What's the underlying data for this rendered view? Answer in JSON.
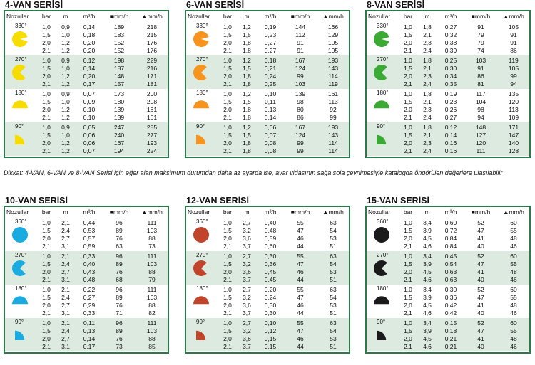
{
  "note": "Dikkat: 4-VAN, 6-VAN ve 8-VAN Serisi için eğer alan maksimum durumdan daha az ayarda ise, ayar vidasının sağa sola çevrilmesiyle katalogda öngörülen değerlere ulaşılabilir",
  "headers": {
    "nozzle": "Nozullar",
    "bar": "bar",
    "m": "m",
    "m3h": "m³/h",
    "sq": "■mm/h",
    "tri": "▲mm/h"
  },
  "panels": [
    {
      "title": "4-VAN SERİSİ",
      "color": "#f7dc00",
      "groups": [
        {
          "angle": "330°",
          "rows": [
            [
              "1,0",
              "0,9",
              "0,14",
              "189",
              "218"
            ],
            [
              "1,5",
              "1,0",
              "0,18",
              "183",
              "215"
            ],
            [
              "2,0",
              "1,2",
              "0,20",
              "152",
              "176"
            ],
            [
              "2,1",
              "1,2",
              "0,20",
              "152",
              "176"
            ]
          ]
        },
        {
          "angle": "270°",
          "rows": [
            [
              "1,0",
              "0,9",
              "0,12",
              "198",
              "229"
            ],
            [
              "1,5",
              "1,0",
              "0,14",
              "187",
              "216"
            ],
            [
              "2,0",
              "1,2",
              "0,20",
              "148",
              "171"
            ],
            [
              "2,1",
              "1,2",
              "0,17",
              "157",
              "181"
            ]
          ]
        },
        {
          "angle": "180°",
          "rows": [
            [
              "1,0",
              "0,9",
              "0,07",
              "173",
              "200"
            ],
            [
              "1,5",
              "1,0",
              "0,09",
              "180",
              "208"
            ],
            [
              "2,0",
              "1,2",
              "0,10",
              "139",
              "161"
            ],
            [
              "2,1",
              "1,2",
              "0,10",
              "139",
              "161"
            ]
          ]
        },
        {
          "angle": "90°",
          "rows": [
            [
              "1,0",
              "0,9",
              "0,05",
              "247",
              "285"
            ],
            [
              "1,5",
              "1,0",
              "0,06",
              "240",
              "277"
            ],
            [
              "2,0",
              "1,2",
              "0,06",
              "167",
              "193"
            ],
            [
              "2,1",
              "1,2",
              "0,07",
              "194",
              "224"
            ]
          ]
        }
      ]
    },
    {
      "title": "6-VAN SERİSİ",
      "color": "#f7941d",
      "groups": [
        {
          "angle": "330°",
          "rows": [
            [
              "1,0",
              "1,2",
              "0,19",
              "144",
              "166"
            ],
            [
              "1,5",
              "1,5",
              "0,23",
              "112",
              "129"
            ],
            [
              "2,0",
              "1,8",
              "0,27",
              "91",
              "105"
            ],
            [
              "2,1",
              "1,8",
              "0,27",
              "91",
              "105"
            ]
          ]
        },
        {
          "angle": "270°",
          "rows": [
            [
              "1,0",
              "1,2",
              "0,18",
              "167",
              "193"
            ],
            [
              "1,5",
              "1,5",
              "0,21",
              "124",
              "143"
            ],
            [
              "2,0",
              "1,8",
              "0,24",
              "99",
              "114"
            ],
            [
              "2,1",
              "1,8",
              "0,25",
              "103",
              "119"
            ]
          ]
        },
        {
          "angle": "180°",
          "rows": [
            [
              "1,0",
              "1,2",
              "0,10",
              "139",
              "161"
            ],
            [
              "1,5",
              "1,5",
              "0,11",
              "98",
              "113"
            ],
            [
              "2,0",
              "1,8",
              "0,13",
              "80",
              "92"
            ],
            [
              "2,1",
              "1,8",
              "0,14",
              "86",
              "99"
            ]
          ]
        },
        {
          "angle": "90°",
          "rows": [
            [
              "1,0",
              "1,2",
              "0,06",
              "167",
              "193"
            ],
            [
              "1,5",
              "1,5",
              "0,07",
              "124",
              "143"
            ],
            [
              "2,0",
              "1,8",
              "0,08",
              "99",
              "114"
            ],
            [
              "2,1",
              "1,8",
              "0,08",
              "99",
              "114"
            ]
          ]
        }
      ]
    },
    {
      "title": "8-VAN SERİSİ",
      "color": "#3aaa35",
      "groups": [
        {
          "angle": "330°",
          "rows": [
            [
              "1,0",
              "1,8",
              "0,27",
              "91",
              "105"
            ],
            [
              "1,5",
              "2,1",
              "0,32",
              "79",
              "91"
            ],
            [
              "2,0",
              "2,3",
              "0,38",
              "79",
              "91"
            ],
            [
              "2,1",
              "2,4",
              "0,39",
              "74",
              "86"
            ]
          ]
        },
        {
          "angle": "270°",
          "rows": [
            [
              "1,0",
              "1,8",
              "0,25",
              "103",
              "119"
            ],
            [
              "1,5",
              "2,1",
              "0,30",
              "91",
              "105"
            ],
            [
              "2,0",
              "2,3",
              "0,34",
              "86",
              "99"
            ],
            [
              "2,1",
              "2,4",
              "0,35",
              "81",
              "94"
            ]
          ]
        },
        {
          "angle": "180°",
          "rows": [
            [
              "1,0",
              "1,8",
              "0,19",
              "117",
              "135"
            ],
            [
              "1,5",
              "2,1",
              "0,23",
              "104",
              "120"
            ],
            [
              "2,0",
              "2,3",
              "0,26",
              "98",
              "113"
            ],
            [
              "2,1",
              "2,4",
              "0,27",
              "94",
              "109"
            ]
          ]
        },
        {
          "angle": "90°",
          "rows": [
            [
              "1,0",
              "1,8",
              "0,12",
              "148",
              "171"
            ],
            [
              "1,5",
              "2,1",
              "0,14",
              "127",
              "147"
            ],
            [
              "2,0",
              "2,3",
              "0,16",
              "120",
              "140"
            ],
            [
              "2,1",
              "2,4",
              "0,16",
              "111",
              "128"
            ]
          ]
        }
      ]
    },
    {
      "title": "10-VAN SERİSİ",
      "color": "#1aabe0",
      "groups": [
        {
          "angle": "360°",
          "rows": [
            [
              "1,0",
              "2,1",
              "0,44",
              "96",
              "111"
            ],
            [
              "1,5",
              "2,4",
              "0,53",
              "89",
              "103"
            ],
            [
              "2,0",
              "2,7",
              "0,57",
              "76",
              "88"
            ],
            [
              "2,1",
              "3,1",
              "0,59",
              "63",
              "73"
            ]
          ]
        },
        {
          "angle": "270°",
          "rows": [
            [
              "1,0",
              "2,1",
              "0,33",
              "96",
              "111"
            ],
            [
              "1,5",
              "2,4",
              "0,40",
              "89",
              "103"
            ],
            [
              "2,0",
              "2,7",
              "0,43",
              "76",
              "88"
            ],
            [
              "2,1",
              "3,1",
              "0,48",
              "68",
              "79"
            ]
          ]
        },
        {
          "angle": "180°",
          "rows": [
            [
              "1,0",
              "2,1",
              "0,22",
              "96",
              "111"
            ],
            [
              "1,5",
              "2,4",
              "0,27",
              "89",
              "103"
            ],
            [
              "2,0",
              "2,7",
              "0,29",
              "76",
              "88"
            ],
            [
              "2,1",
              "3,1",
              "0,33",
              "71",
              "82"
            ]
          ]
        },
        {
          "angle": "90°",
          "rows": [
            [
              "1,0",
              "2,1",
              "0,11",
              "96",
              "111"
            ],
            [
              "1,5",
              "2,4",
              "0,13",
              "89",
              "103"
            ],
            [
              "2,0",
              "2,7",
              "0,14",
              "76",
              "88"
            ],
            [
              "2,1",
              "3,1",
              "0,17",
              "73",
              "85"
            ]
          ]
        }
      ]
    },
    {
      "title": "12-VAN SERİSİ",
      "color": "#c0452a",
      "groups": [
        {
          "angle": "360°",
          "rows": [
            [
              "1,0",
              "2,7",
              "0,40",
              "55",
              "63"
            ],
            [
              "1,5",
              "3,2",
              "0,48",
              "47",
              "54"
            ],
            [
              "2,0",
              "3,6",
              "0,59",
              "46",
              "53"
            ],
            [
              "2,1",
              "3,7",
              "0,60",
              "44",
              "51"
            ]
          ]
        },
        {
          "angle": "270°",
          "rows": [
            [
              "1,0",
              "2,7",
              "0,30",
              "55",
              "63"
            ],
            [
              "1,5",
              "3,2",
              "0,36",
              "47",
              "54"
            ],
            [
              "2,0",
              "3,6",
              "0,45",
              "46",
              "53"
            ],
            [
              "2,1",
              "3,7",
              "0,45",
              "44",
              "51"
            ]
          ]
        },
        {
          "angle": "180°",
          "rows": [
            [
              "1,0",
              "2,7",
              "0,20",
              "55",
              "63"
            ],
            [
              "1,5",
              "3,2",
              "0,24",
              "47",
              "54"
            ],
            [
              "2,0",
              "3,6",
              "0,30",
              "46",
              "53"
            ],
            [
              "2,1",
              "3,7",
              "0,30",
              "44",
              "51"
            ]
          ]
        },
        {
          "angle": "90°",
          "rows": [
            [
              "1,0",
              "2,7",
              "0,10",
              "55",
              "63"
            ],
            [
              "1,5",
              "3,2",
              "0,12",
              "47",
              "54"
            ],
            [
              "2,0",
              "3,6",
              "0,15",
              "46",
              "53"
            ],
            [
              "2,1",
              "3,7",
              "0,15",
              "44",
              "51"
            ]
          ]
        }
      ]
    },
    {
      "title": "15-VAN SERİSİ",
      "color": "#1a1a1a",
      "groups": [
        {
          "angle": "360°",
          "rows": [
            [
              "1,0",
              "3,4",
              "0,60",
              "52",
              "60"
            ],
            [
              "1,5",
              "3,9",
              "0,72",
              "47",
              "55"
            ],
            [
              "2,0",
              "4,5",
              "0,84",
              "41",
              "48"
            ],
            [
              "2,1",
              "4,6",
              "0,84",
              "40",
              "46"
            ]
          ]
        },
        {
          "angle": "270°",
          "rows": [
            [
              "1,0",
              "3,4",
              "0,45",
              "52",
              "60"
            ],
            [
              "1,5",
              "3,9",
              "0,54",
              "47",
              "55"
            ],
            [
              "2,0",
              "4,5",
              "0,63",
              "41",
              "48"
            ],
            [
              "2,1",
              "4,6",
              "0,63",
              "40",
              "46"
            ]
          ]
        },
        {
          "angle": "180°",
          "rows": [
            [
              "1,0",
              "3,4",
              "0,30",
              "52",
              "60"
            ],
            [
              "1,5",
              "3,9",
              "0,36",
              "47",
              "55"
            ],
            [
              "2,0",
              "4,5",
              "0,42",
              "41",
              "48"
            ],
            [
              "2,1",
              "4,6",
              "0,42",
              "40",
              "46"
            ]
          ]
        },
        {
          "angle": "90°",
          "rows": [
            [
              "1,0",
              "3,4",
              "0,15",
              "52",
              "60"
            ],
            [
              "1,5",
              "3,9",
              "0,18",
              "47",
              "55"
            ],
            [
              "2,0",
              "4,5",
              "0,21",
              "41",
              "48"
            ],
            [
              "2,1",
              "4,6",
              "0,21",
              "40",
              "46"
            ]
          ]
        }
      ]
    }
  ]
}
